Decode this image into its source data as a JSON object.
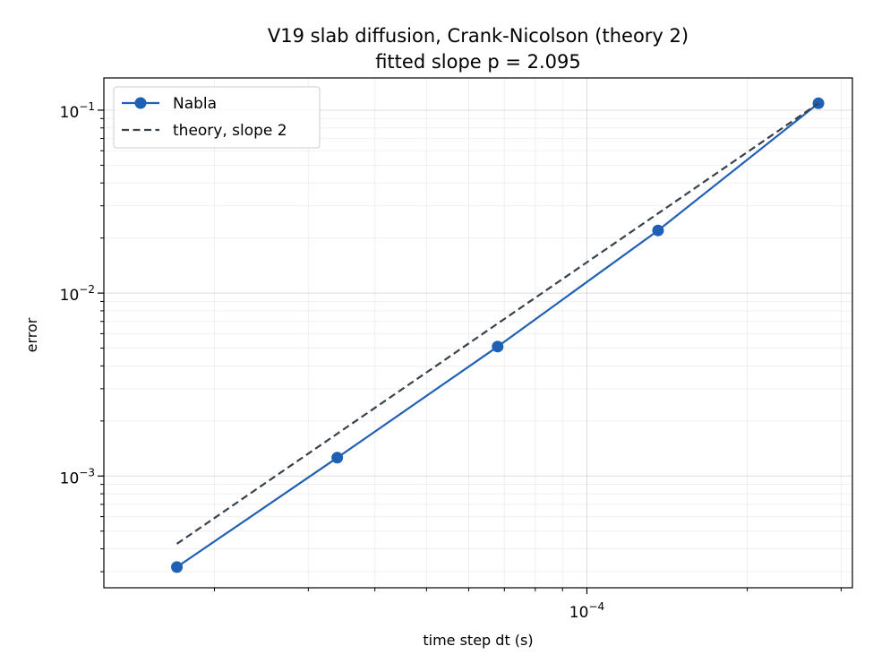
{
  "chart_data": {
    "type": "line",
    "title": "V19 slab diffusion, Crank-Nicolson (theory 2)",
    "subtitle": "fitted slope p = 2.095",
    "xlabel": "time step dt (s)",
    "ylabel": "error",
    "x_scale": "log",
    "y_scale": "log",
    "xlim": [
      1.24e-05,
      0.000315
    ],
    "ylim": [
      0.000245,
      0.15
    ],
    "grid": true,
    "grid_minor": true,
    "legend_position": "upper-left",
    "x_tick_labels": [
      {
        "value": 0.0001,
        "base": "10",
        "exp": "−4"
      }
    ],
    "y_tick_labels": [
      {
        "value": 0.001,
        "base": "10",
        "exp": "−3"
      },
      {
        "value": 0.01,
        "base": "10",
        "exp": "−2"
      },
      {
        "value": 0.1,
        "base": "10",
        "exp": "−1"
      }
    ],
    "series": [
      {
        "name": "Nabla",
        "color": "#1f5fb4",
        "style": "solid",
        "marker": "circle",
        "x": [
          1.7e-05,
          3.4e-05,
          6.8e-05,
          0.000136,
          0.000272
        ],
        "y": [
          0.000318,
          0.00126,
          0.0051,
          0.022,
          0.109
        ]
      },
      {
        "name": "theory, slope 2",
        "color": "#36424d",
        "style": "dashed",
        "marker": "none",
        "x": [
          1.7e-05,
          0.000272
        ],
        "y": [
          0.000426,
          0.109
        ]
      }
    ]
  }
}
